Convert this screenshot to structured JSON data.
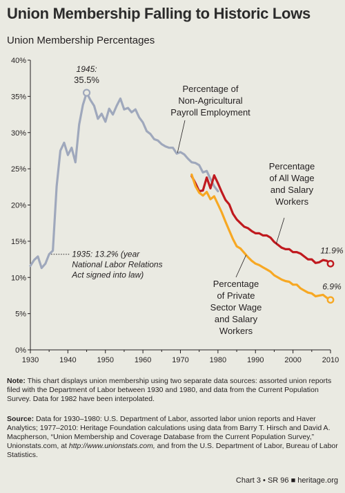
{
  "title": "Union Membership Falling to Historic Lows",
  "subtitle": "Union Membership Percentages",
  "chart_data": {
    "type": "line",
    "xlim": [
      1930,
      2010
    ],
    "ylim": [
      0,
      40
    ],
    "x_ticks": [
      "1930",
      "1940",
      "1950",
      "1960",
      "1970",
      "1980",
      "1990",
      "2000",
      "2010"
    ],
    "y_ticks": [
      "0%",
      "5%",
      "10%",
      "15%",
      "20%",
      "25%",
      "30%",
      "35%",
      "40%"
    ],
    "grid": false,
    "legend": "none (series labeled directly)",
    "series": [
      {
        "name": "Percentage of Non-Agricultural Payroll Employment",
        "color": "#9fa8bc",
        "x": [
          1930,
          1931,
          1932,
          1933,
          1934,
          1935,
          1936,
          1937,
          1938,
          1939,
          1940,
          1941,
          1942,
          1943,
          1944,
          1945,
          1946,
          1947,
          1948,
          1949,
          1950,
          1951,
          1952,
          1953,
          1954,
          1955,
          1956,
          1957,
          1958,
          1959,
          1960,
          1961,
          1962,
          1963,
          1964,
          1965,
          1966,
          1967,
          1968,
          1969,
          1970,
          1971,
          1972,
          1973,
          1974,
          1975,
          1976,
          1977,
          1978,
          1979,
          1980
        ],
        "y": [
          11.6,
          12.4,
          12.9,
          11.3,
          11.9,
          13.2,
          13.7,
          22.6,
          27.5,
          28.6,
          26.9,
          27.9,
          25.9,
          31.1,
          33.8,
          35.5,
          34.5,
          33.7,
          31.9,
          32.6,
          31.5,
          33.3,
          32.5,
          33.7,
          34.7,
          33.2,
          33.4,
          32.8,
          33.2,
          32.1,
          31.4,
          30.2,
          29.8,
          29.1,
          28.9,
          28.4,
          28.1,
          27.9,
          27.9,
          27.1,
          27.3,
          27.0,
          26.4,
          25.9,
          25.8,
          25.5,
          24.5,
          24.7,
          23.6,
          22.6,
          21.9
        ]
      },
      {
        "name": "Percentage of All Wage and Salary Workers",
        "color": "#c01a1f",
        "x": [
          1973,
          1974,
          1975,
          1976,
          1977,
          1978,
          1979,
          1980,
          1981,
          1982,
          1983,
          1984,
          1985,
          1986,
          1987,
          1988,
          1989,
          1990,
          1991,
          1992,
          1993,
          1994,
          1995,
          1996,
          1997,
          1998,
          1999,
          2000,
          2001,
          2002,
          2003,
          2004,
          2005,
          2006,
          2007,
          2008,
          2009,
          2010
        ],
        "y": [
          24.0,
          23.0,
          21.9,
          22.0,
          23.8,
          22.3,
          24.1,
          23.0,
          21.8,
          20.7,
          20.1,
          18.8,
          18.0,
          17.5,
          17.0,
          16.8,
          16.4,
          16.1,
          16.1,
          15.8,
          15.8,
          15.5,
          14.9,
          14.5,
          14.1,
          13.9,
          13.9,
          13.5,
          13.5,
          13.3,
          12.9,
          12.5,
          12.5,
          12.0,
          12.1,
          12.4,
          12.3,
          11.9
        ]
      },
      {
        "name": "Percentage of Private Sector Wage and Salary Workers",
        "color": "#f7a823",
        "x": [
          1973,
          1974,
          1975,
          1976,
          1977,
          1978,
          1979,
          1980,
          1981,
          1982,
          1983,
          1984,
          1985,
          1986,
          1987,
          1988,
          1989,
          1990,
          1991,
          1992,
          1993,
          1994,
          1995,
          1996,
          1997,
          1998,
          1999,
          2000,
          2001,
          2002,
          2003,
          2004,
          2005,
          2006,
          2007,
          2008,
          2009,
          2010
        ],
        "y": [
          24.2,
          22.6,
          21.7,
          21.3,
          21.8,
          20.8,
          21.2,
          20.1,
          19.0,
          17.7,
          16.5,
          15.3,
          14.3,
          14.0,
          13.4,
          12.8,
          12.3,
          11.9,
          11.7,
          11.4,
          11.1,
          10.8,
          10.3,
          10.0,
          9.7,
          9.5,
          9.4,
          9.0,
          9.0,
          8.5,
          8.2,
          7.9,
          7.8,
          7.4,
          7.5,
          7.6,
          7.2,
          6.9
        ]
      }
    ],
    "annotations": {
      "peak_year": "1945:",
      "peak_value": "35.5%",
      "nlra_line1": "1935: 13.2% (year",
      "nlra_line2": "National Labor Relations",
      "nlra_line3": "Act signed into law)",
      "end_all": "11.9%",
      "end_private": "6.9%"
    },
    "series_labels": {
      "payroll": [
        "Percentage of",
        "Non-Agricultural",
        "Payroll Employment"
      ],
      "all": [
        "Percentage",
        "of All Wage",
        "and Salary",
        "Workers"
      ],
      "private": [
        "Percentage",
        "of Private",
        "Sector Wage",
        "and Salary",
        "Workers"
      ]
    }
  },
  "note": {
    "label": "Note:",
    "text": "This chart displays union membership using two separate data sources: assorted union reports filed with the Department of Labor between 1930 and 1980, and data from the Current Population Survey. Data for 1982 have been interpolated."
  },
  "source": {
    "label": "Source:",
    "text_before_url": "Data for 1930–1980: U.S. Department of Labor, assorted labor union reports and Haver Analytics; 1977–2010: Heritage Foundation calculations using data from Barry T. Hirsch and David A. Macpherson, “Union Membership and Coverage Database from the Current Population Survey,” Unionstats.com, at ",
    "url": "http://www.unionstats.com,",
    "text_after_url": " and from the U.S. Department of Labor, Bureau of Labor Statistics."
  },
  "footer": "Chart 3 • SR 96  ■  heritage.org"
}
